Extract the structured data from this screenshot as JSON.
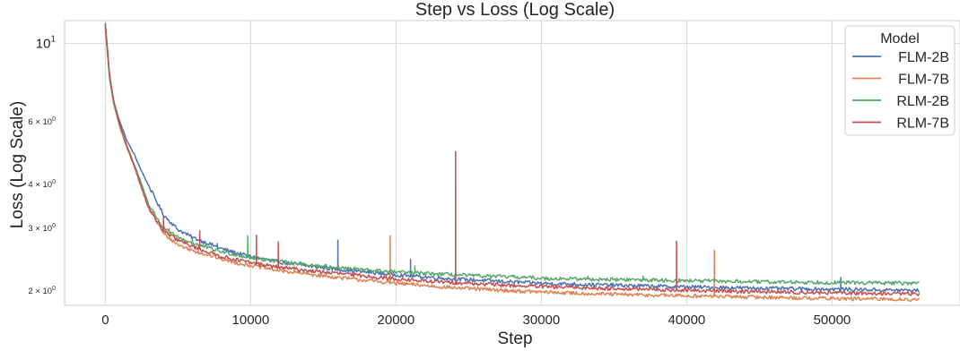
{
  "chart_data": {
    "type": "line",
    "title": "Step vs Loss (Log Scale)",
    "xlabel": "Step",
    "ylabel": "Loss (Log Scale)",
    "xlim": [
      -2800,
      58800
    ],
    "ylim": [
      1.82,
      11.6
    ],
    "yscale": "log",
    "grid": true,
    "x_ticks": [
      0,
      10000,
      20000,
      30000,
      40000,
      50000
    ],
    "x_tick_labels": [
      "0",
      "10000",
      "20000",
      "30000",
      "40000",
      "50000"
    ],
    "y_ticks": [
      {
        "value": 10,
        "base": "10",
        "exp": "1",
        "major": true
      },
      {
        "value": 6,
        "base": "6 × 10",
        "exp": "0",
        "major": false
      },
      {
        "value": 4,
        "base": "4 × 10",
        "exp": "0",
        "major": false
      },
      {
        "value": 3,
        "base": "3 × 10",
        "exp": "0",
        "major": false
      },
      {
        "value": 2,
        "base": "2 × 10",
        "exp": "0",
        "major": false
      }
    ],
    "legend": {
      "title": "Model",
      "placement": "top-right"
    },
    "series": [
      {
        "name": "FLM-2B",
        "color": "#4c72b0",
        "points": [
          [
            0,
            11.2
          ],
          [
            300,
            8.0
          ],
          [
            600,
            6.8
          ],
          [
            1000,
            6.0
          ],
          [
            1500,
            5.3
          ],
          [
            2000,
            4.85
          ],
          [
            2500,
            4.35
          ],
          [
            3000,
            3.95
          ],
          [
            4000,
            3.28
          ],
          [
            5000,
            2.98
          ],
          [
            6000,
            2.83
          ],
          [
            7000,
            2.73
          ],
          [
            8000,
            2.63
          ],
          [
            9000,
            2.56
          ],
          [
            10000,
            2.5
          ],
          [
            12000,
            2.41
          ],
          [
            14000,
            2.35
          ],
          [
            16000,
            2.3
          ],
          [
            18000,
            2.26
          ],
          [
            20000,
            2.22
          ],
          [
            22000,
            2.19
          ],
          [
            24000,
            2.16
          ],
          [
            26000,
            2.14
          ],
          [
            28000,
            2.12
          ],
          [
            30000,
            2.1
          ],
          [
            33000,
            2.085
          ],
          [
            36000,
            2.07
          ],
          [
            39000,
            2.055
          ],
          [
            42000,
            2.045
          ],
          [
            45000,
            2.035
          ],
          [
            48000,
            2.025
          ],
          [
            51000,
            2.02
          ],
          [
            54000,
            2.01
          ],
          [
            56000,
            2.005
          ]
        ],
        "spikes": [
          [
            16000,
            2.78
          ],
          [
            21000,
            2.45
          ],
          [
            50600,
            2.18
          ],
          [
            7700,
            2.72
          ]
        ]
      },
      {
        "name": "FLM-7B",
        "color": "#dd8452",
        "points": [
          [
            0,
            11.3
          ],
          [
            300,
            8.0
          ],
          [
            600,
            6.7
          ],
          [
            1000,
            5.8
          ],
          [
            1500,
            5.05
          ],
          [
            2000,
            4.5
          ],
          [
            2500,
            3.95
          ],
          [
            3000,
            3.45
          ],
          [
            4000,
            2.9
          ],
          [
            5000,
            2.7
          ],
          [
            6000,
            2.6
          ],
          [
            7000,
            2.53
          ],
          [
            8000,
            2.46
          ],
          [
            9000,
            2.4
          ],
          [
            10000,
            2.36
          ],
          [
            12000,
            2.28
          ],
          [
            14000,
            2.23
          ],
          [
            16000,
            2.18
          ],
          [
            18000,
            2.14
          ],
          [
            20000,
            2.1
          ],
          [
            22000,
            2.07
          ],
          [
            24000,
            2.04
          ],
          [
            26000,
            2.02
          ],
          [
            28000,
            2.0
          ],
          [
            30000,
            1.985
          ],
          [
            33000,
            1.965
          ],
          [
            36000,
            1.95
          ],
          [
            39000,
            1.94
          ],
          [
            42000,
            1.93
          ],
          [
            45000,
            1.92
          ],
          [
            48000,
            1.91
          ],
          [
            51000,
            1.9
          ],
          [
            54000,
            1.895
          ],
          [
            56000,
            1.89
          ]
        ],
        "spikes": [
          [
            19600,
            2.86
          ],
          [
            41900,
            2.6
          ],
          [
            4400,
            3.0
          ],
          [
            6400,
            2.7
          ],
          [
            13000,
            2.35
          ]
        ]
      },
      {
        "name": "RLM-2B",
        "color": "#55a868",
        "points": [
          [
            0,
            11.1
          ],
          [
            300,
            7.9
          ],
          [
            600,
            6.7
          ],
          [
            1000,
            5.85
          ],
          [
            1500,
            5.1
          ],
          [
            2000,
            4.55
          ],
          [
            2500,
            4.0
          ],
          [
            3000,
            3.5
          ],
          [
            4000,
            3.0
          ],
          [
            5000,
            2.83
          ],
          [
            6000,
            2.73
          ],
          [
            7000,
            2.65
          ],
          [
            8000,
            2.58
          ],
          [
            9000,
            2.53
          ],
          [
            10000,
            2.48
          ],
          [
            12000,
            2.42
          ],
          [
            14000,
            2.37
          ],
          [
            16000,
            2.33
          ],
          [
            18000,
            2.29
          ],
          [
            20000,
            2.26
          ],
          [
            22000,
            2.24
          ],
          [
            24000,
            2.22
          ],
          [
            26000,
            2.2
          ],
          [
            28000,
            2.19
          ],
          [
            30000,
            2.17
          ],
          [
            33000,
            2.16
          ],
          [
            36000,
            2.15
          ],
          [
            39000,
            2.14
          ],
          [
            42000,
            2.13
          ],
          [
            45000,
            2.12
          ],
          [
            48000,
            2.115
          ],
          [
            51000,
            2.11
          ],
          [
            54000,
            2.105
          ],
          [
            56000,
            2.1
          ]
        ],
        "spikes": [
          [
            9800,
            2.86
          ],
          [
            6000,
            2.8
          ],
          [
            37000,
            2.2
          ],
          [
            21300,
            2.35
          ],
          [
            33200,
            2.2
          ]
        ]
      },
      {
        "name": "RLM-7B",
        "color": "#c44e52",
        "points": [
          [
            0,
            11.4
          ],
          [
            300,
            8.1
          ],
          [
            600,
            6.8
          ],
          [
            1000,
            5.9
          ],
          [
            1500,
            5.1
          ],
          [
            2000,
            4.5
          ],
          [
            2500,
            3.9
          ],
          [
            3000,
            3.4
          ],
          [
            4000,
            2.95
          ],
          [
            5000,
            2.78
          ],
          [
            6000,
            2.67
          ],
          [
            7000,
            2.58
          ],
          [
            8000,
            2.5
          ],
          [
            9000,
            2.45
          ],
          [
            10000,
            2.4
          ],
          [
            12000,
            2.33
          ],
          [
            14000,
            2.28
          ],
          [
            16000,
            2.24
          ],
          [
            18000,
            2.2
          ],
          [
            20000,
            2.16
          ],
          [
            22000,
            2.13
          ],
          [
            24000,
            2.11
          ],
          [
            26000,
            2.09
          ],
          [
            28000,
            2.07
          ],
          [
            30000,
            2.055
          ],
          [
            33000,
            2.04
          ],
          [
            36000,
            2.025
          ],
          [
            39000,
            2.01
          ],
          [
            42000,
            2.0
          ],
          [
            45000,
            1.99
          ],
          [
            48000,
            1.98
          ],
          [
            51000,
            1.97
          ],
          [
            54000,
            1.965
          ],
          [
            56000,
            1.96
          ]
        ],
        "spikes": [
          [
            24100,
            4.95
          ],
          [
            39300,
            2.76
          ],
          [
            10400,
            2.87
          ],
          [
            11900,
            2.75
          ],
          [
            4000,
            3.22
          ],
          [
            6500,
            2.95
          ]
        ]
      }
    ]
  }
}
